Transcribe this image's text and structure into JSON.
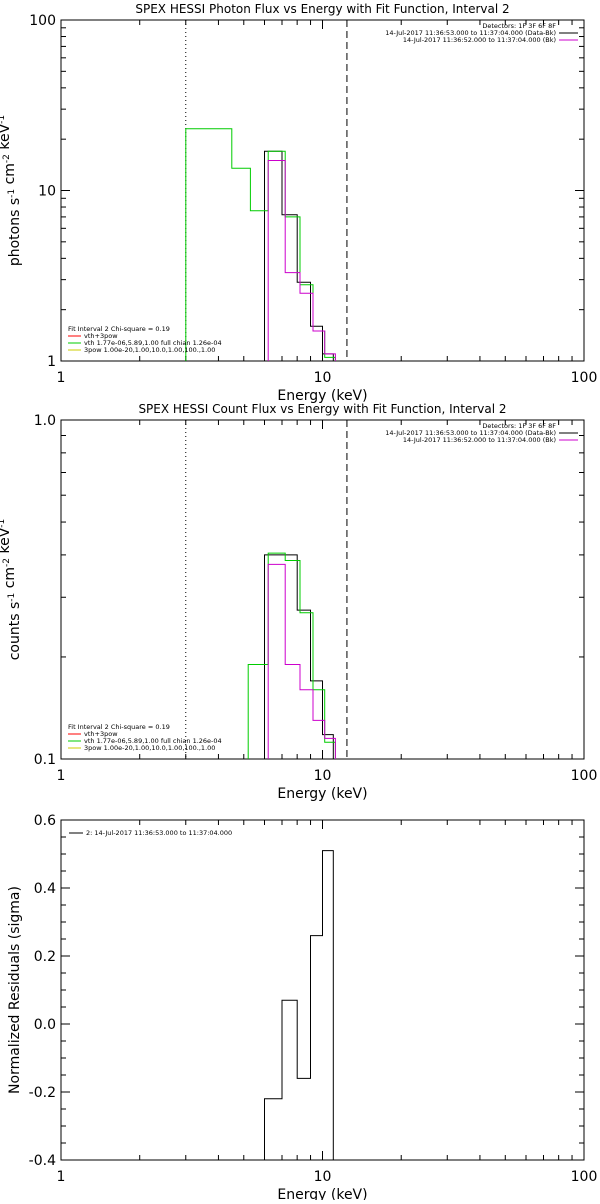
{
  "chart_data": [
    {
      "type": "step",
      "title": "SPEX HESSI Photon Flux vs Energy with Fit Function, Interval 2",
      "xlabel": "Energy (keV)",
      "ylabel": "photons s$^{-1}$ cm$^{-2}$ keV$^{-1}$",
      "xscale": "log",
      "yscale": "log",
      "xlim": [
        1,
        100
      ],
      "ylim": [
        1,
        100
      ],
      "xticks": [
        {
          "v": 1,
          "label": "1"
        },
        {
          "v": 10,
          "label": "10"
        },
        {
          "v": 100,
          "label": "100"
        }
      ],
      "yticks": [
        {
          "v": 1,
          "label": "1"
        },
        {
          "v": 10,
          "label": "10"
        },
        {
          "v": 100,
          "label": "100"
        }
      ],
      "vlines": [
        {
          "x": 3.0,
          "style": "dotted"
        },
        {
          "x": 12.4,
          "style": "dashed"
        }
      ],
      "legend_top": [
        "Detectors: 1F 3F 6F 8F",
        "14-Jul-2017 11:36:53.000 to 11:37:04.000 (Data-Bk)",
        "14-Jul-2017 11:36:52.000 to 11:37:04.000 (Bk)"
      ],
      "legend_top_colors": [
        "",
        "#000000",
        "#cc00cc"
      ],
      "legend_bottom": [
        "Fit Interval 2   Chi-square = 0.19",
        "vth+3pow",
        "vth 1.77e-06,5.89,1.00  full chian 1.26e-04",
        "3pow 1.00e-20,1.00,10.0,1.00,100.,1.00"
      ],
      "legend_bottom_colors": [
        "",
        "#ff0000",
        "#00cc00",
        "#cccc00"
      ],
      "series": [
        {
          "name": "Data-Bk",
          "color": "#000000",
          "bins": [
            [
              6.0,
              7.0,
              17.0
            ],
            [
              7.0,
              8.0,
              7.2
            ],
            [
              8.0,
              9.0,
              2.9
            ],
            [
              9.0,
              10.0,
              1.6
            ],
            [
              10.0,
              11.0,
              1.1
            ]
          ]
        },
        {
          "name": "vth",
          "color": "#00cc00",
          "bins": [
            [
              3.0,
              3.7,
              23.0
            ],
            [
              3.7,
              4.5,
              23.0
            ],
            [
              4.5,
              5.3,
              13.5
            ],
            [
              5.3,
              6.2,
              7.6
            ],
            [
              6.2,
              7.2,
              17.0
            ],
            [
              7.2,
              8.2,
              7.0
            ],
            [
              8.2,
              9.2,
              2.8
            ],
            [
              9.2,
              10.2,
              1.5
            ],
            [
              10.2,
              11.2,
              1.05
            ]
          ]
        },
        {
          "name": "vth+3pow",
          "color": "#cc00cc",
          "bins": [
            [
              6.2,
              7.2,
              15.0
            ],
            [
              7.2,
              8.2,
              3.3
            ],
            [
              8.2,
              9.2,
              2.5
            ],
            [
              9.2,
              10.2,
              1.5
            ],
            [
              10.2,
              11.2,
              1.1
            ]
          ]
        }
      ]
    },
    {
      "type": "step",
      "title": "SPEX HESSI Count Flux vs Energy with Fit Function, Interval 2",
      "xlabel": "Energy (keV)",
      "ylabel": "counts s$^{-1}$ cm$^{-2}$ keV$^{-1}$",
      "xscale": "log",
      "yscale": "log",
      "xlim": [
        1,
        100
      ],
      "ylim": [
        0.1,
        1.0
      ],
      "xticks": [
        {
          "v": 1,
          "label": "1"
        },
        {
          "v": 10,
          "label": "10"
        },
        {
          "v": 100,
          "label": "100"
        }
      ],
      "yticks": [
        {
          "v": 0.1,
          "label": "0.1"
        },
        {
          "v": 1.0,
          "label": "1.0"
        }
      ],
      "vlines": [
        {
          "x": 3.0,
          "style": "dotted"
        },
        {
          "x": 12.4,
          "style": "dashed"
        }
      ],
      "legend_top": [
        "Detectors: 1F 3F 6F 8F",
        "14-Jul-2017 11:36:53.000 to 11:37:04.000 (Data-Bk)",
        "14-Jul-2017 11:36:52.000 to 11:37:04.000 (Bk)"
      ],
      "legend_top_colors": [
        "",
        "#000000",
        "#cc00cc"
      ],
      "legend_bottom": [
        "Fit Interval 2   Chi-square = 0.19",
        "vth+3pow",
        "vth 1.77e-06,5.89,1.00  full chian 1.26e-04",
        "3pow 1.00e-20,1.00,10.0,1.00,100.,1.00"
      ],
      "legend_bottom_colors": [
        "",
        "#ff0000",
        "#00cc00",
        "#cccc00"
      ],
      "series": [
        {
          "name": "Data-Bk",
          "color": "#000000",
          "bins": [
            [
              6.0,
              7.0,
              0.4
            ],
            [
              7.0,
              8.0,
              0.4
            ],
            [
              8.0,
              9.0,
              0.275
            ],
            [
              9.0,
              10.0,
              0.17
            ],
            [
              10.0,
              11.0,
              0.118
            ]
          ]
        },
        {
          "name": "vth",
          "color": "#00cc00",
          "bins": [
            [
              5.2,
              6.2,
              0.19
            ],
            [
              6.2,
              7.2,
              0.405
            ],
            [
              7.2,
              8.2,
              0.385
            ],
            [
              8.2,
              9.2,
              0.27
            ],
            [
              9.2,
              10.2,
              0.16
            ],
            [
              10.2,
              11.2,
              0.112
            ]
          ]
        },
        {
          "name": "vth+3pow",
          "color": "#cc00cc",
          "bins": [
            [
              6.2,
              7.2,
              0.375
            ],
            [
              7.2,
              8.2,
              0.19
            ],
            [
              8.2,
              9.2,
              0.16
            ],
            [
              9.2,
              10.2,
              0.13
            ],
            [
              10.2,
              11.2,
              0.115
            ]
          ]
        }
      ]
    },
    {
      "type": "step",
      "title": "",
      "xlabel": "Energy (keV)",
      "ylabel": "Normalized Residuals (sigma)",
      "xscale": "log",
      "yscale": "linear",
      "xlim": [
        1,
        100
      ],
      "ylim": [
        -0.4,
        0.6
      ],
      "xticks": [
        {
          "v": 1,
          "label": "1"
        },
        {
          "v": 10,
          "label": "10"
        },
        {
          "v": 100,
          "label": "100"
        }
      ],
      "yticks": [
        {
          "v": -0.4,
          "label": "-0.4"
        },
        {
          "v": -0.2,
          "label": "-0.2"
        },
        {
          "v": 0.0,
          "label": "0.0"
        },
        {
          "v": 0.2,
          "label": "0.2"
        },
        {
          "v": 0.4,
          "label": "0.4"
        },
        {
          "v": 0.6,
          "label": "0.6"
        }
      ],
      "legend_top_left": "2: 14-Jul-2017 11:36:53.000 to 11:37:04.000",
      "series": [
        {
          "name": "residuals",
          "color": "#000000",
          "bins": [
            [
              6.0,
              7.0,
              -0.22
            ],
            [
              7.0,
              8.0,
              0.07
            ],
            [
              8.0,
              9.0,
              -0.16
            ],
            [
              9.0,
              10.0,
              0.26
            ],
            [
              10.0,
              11.0,
              0.51
            ]
          ]
        }
      ]
    }
  ]
}
